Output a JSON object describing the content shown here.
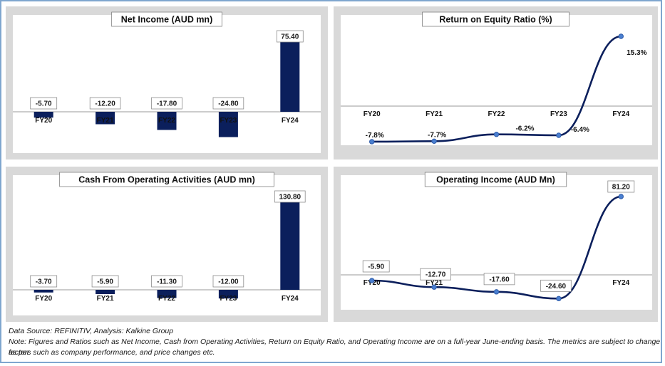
{
  "colors": {
    "bar": "#0b1f5c",
    "line": "#0b1f5c",
    "marker": "#4a7fd0",
    "panel": "#d9d9d9",
    "plot": "#ffffff"
  },
  "chart_data": [
    {
      "type": "bar",
      "title": "Net Income (AUD mn)",
      "categories": [
        "FY20",
        "FY21",
        "FY22",
        "FY23",
        "FY24"
      ],
      "values": [
        -5.7,
        -12.2,
        -17.8,
        -24.8,
        75.4
      ],
      "value_labels": [
        "-5.70",
        "-12.20",
        "-17.80",
        "-24.80",
        "75.40"
      ]
    },
    {
      "type": "line",
      "title": "Return on Equity Ratio (%)",
      "categories": [
        "FY20",
        "FY21",
        "FY22",
        "FY23",
        "FY24"
      ],
      "values": [
        -7.8,
        -7.7,
        -6.2,
        -6.4,
        15.3
      ],
      "value_labels": [
        "-7.8%",
        "-7.7%",
        "-6.2%",
        "-6.4%",
        "15.3%"
      ]
    },
    {
      "type": "bar",
      "title": "Cash From Operating Activities (AUD mn)",
      "categories": [
        "FY20",
        "FY21",
        "FY22",
        "FY23",
        "FY24"
      ],
      "values": [
        -3.7,
        -5.9,
        -11.3,
        -12.0,
        130.8
      ],
      "value_labels": [
        "-3.70",
        "-5.90",
        "-11.30",
        "-12.00",
        "130.80"
      ]
    },
    {
      "type": "line",
      "title": "Operating Income (AUD Mn)",
      "categories": [
        "FY20",
        "FY21",
        "FY22",
        "FY23",
        "FY24"
      ],
      "values": [
        -5.9,
        -12.7,
        -17.6,
        -24.6,
        81.2
      ],
      "value_labels": [
        "-5.90",
        "-12.70",
        "-17.60",
        "-24.60",
        "81.20"
      ]
    }
  ],
  "footer": {
    "source": "Data Source: REFINITIV, Analysis: Kalkine Group",
    "note_line1": "Note: Figures and Ratios such as Net Income, Cash from Operating Activities, Return on Equity Ratio, and Operating Income are on a full-year June-ending basis. The metrics are subject to change as per",
    "note_line2": "factors such as company performance, and price changes etc."
  }
}
